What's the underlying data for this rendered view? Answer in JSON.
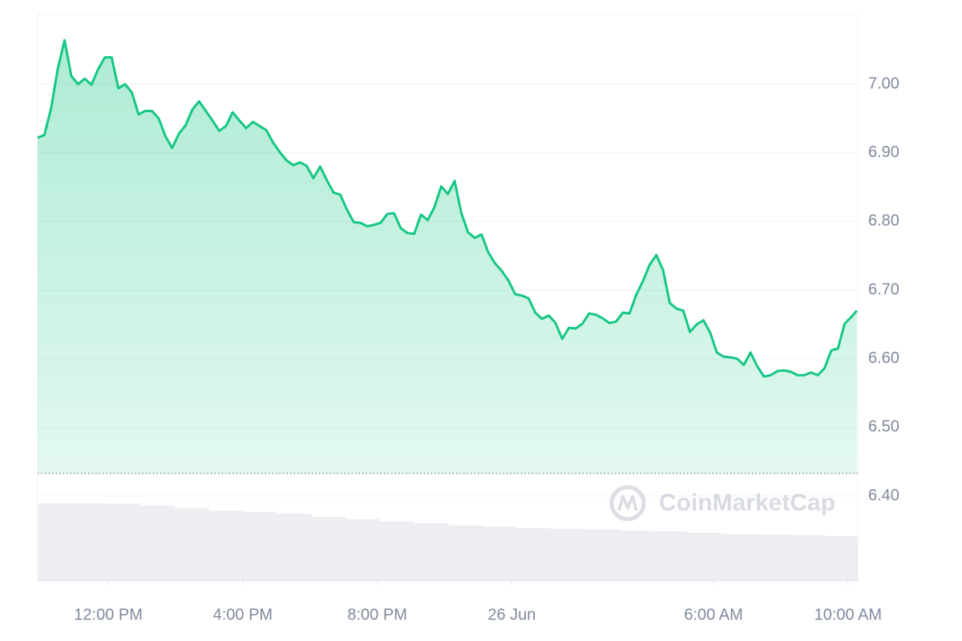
{
  "chart_data": {
    "type": "area",
    "watermark": "CoinMarketCap",
    "color": "#16c784",
    "x": [
      9.9,
      10.1,
      10.3,
      10.5,
      10.7,
      10.9,
      11.1,
      11.3,
      11.5,
      11.7,
      11.9,
      12.1,
      12.3,
      12.5,
      12.7,
      12.9,
      13.1,
      13.3,
      13.5,
      13.7,
      13.9,
      14.1,
      14.3,
      14.5,
      14.7,
      14.9,
      15.1,
      15.3,
      15.5,
      15.7,
      15.9,
      16.1,
      16.3,
      16.5,
      16.7,
      16.9,
      17.1,
      17.3,
      17.5,
      17.7,
      17.9,
      18.1,
      18.3,
      18.5,
      18.7,
      18.9,
      19.1,
      19.3,
      19.5,
      19.7,
      19.9,
      20.1,
      20.3,
      20.5,
      20.7,
      20.9,
      21.1,
      21.3,
      21.5,
      21.7,
      21.9,
      22.1,
      22.3,
      22.5,
      22.7,
      22.9,
      23.1,
      23.3,
      23.5,
      23.7,
      23.9,
      24.1,
      24.3,
      24.5,
      24.7,
      24.9,
      25.1,
      25.3,
      25.5,
      25.7,
      25.9,
      26.1,
      26.3,
      26.5,
      26.7,
      26.9,
      27.1,
      27.3,
      27.5,
      27.7,
      27.9,
      28.1,
      28.3,
      28.5,
      28.7,
      28.9,
      29.1,
      29.3,
      29.5,
      29.7,
      29.9,
      30.1,
      30.3,
      30.5,
      30.7,
      30.9,
      31.1,
      31.3,
      31.5,
      31.7,
      31.9,
      32.1,
      32.3,
      32.5,
      32.7,
      32.9,
      33.1,
      33.3,
      33.5,
      33.7,
      33.9,
      34.1,
      34.26
    ],
    "values": [
      6.922,
      6.926,
      6.965,
      7.023,
      7.064,
      7.012,
      7.0,
      7.008,
      6.999,
      7.022,
      7.039,
      7.039,
      6.994,
      7.0,
      6.988,
      6.956,
      6.961,
      6.961,
      6.95,
      6.924,
      6.907,
      6.928,
      6.94,
      6.963,
      6.975,
      6.961,
      6.947,
      6.932,
      6.939,
      6.959,
      6.947,
      6.936,
      6.945,
      6.939,
      6.933,
      6.915,
      6.901,
      6.889,
      6.882,
      6.886,
      6.881,
      6.863,
      6.88,
      6.86,
      6.842,
      6.839,
      6.817,
      6.799,
      6.798,
      6.793,
      6.795,
      6.798,
      6.811,
      6.812,
      6.79,
      6.783,
      6.782,
      6.81,
      6.802,
      6.821,
      6.851,
      6.84,
      6.859,
      6.812,
      6.784,
      6.776,
      6.781,
      6.755,
      6.739,
      6.728,
      6.714,
      6.694,
      6.692,
      6.688,
      6.667,
      6.658,
      6.663,
      6.652,
      6.629,
      6.645,
      6.644,
      6.651,
      6.666,
      6.664,
      6.659,
      6.652,
      6.654,
      6.667,
      6.666,
      6.693,
      6.713,
      6.737,
      6.751,
      6.729,
      6.681,
      6.673,
      6.67,
      6.639,
      6.65,
      6.656,
      6.638,
      6.609,
      6.603,
      6.602,
      6.6,
      6.591,
      6.609,
      6.589,
      6.574,
      6.576,
      6.582,
      6.583,
      6.581,
      6.576,
      6.576,
      6.58,
      6.576,
      6.586,
      6.612,
      6.615,
      6.651,
      6.661,
      6.67
    ],
    "reference_line": 6.433,
    "volume": {
      "color": "#eceef2",
      "axis": "y2",
      "values": [
        13.7,
        13.7,
        13.6,
        13.3,
        12.9,
        12.4,
        12.2,
        11.9,
        11.3,
        10.9,
        10.5,
        10.2,
        9.8,
        9.6,
        9.3,
        9.2,
        9.1,
        8.9,
        8.8,
        8.5,
        8.3,
        8.2,
        8.1,
        7.9
      ]
    },
    "xlim": [
      9.9,
      34.29
    ],
    "xticks": [
      {
        "value": 12,
        "label": "12:00 PM"
      },
      {
        "value": 16,
        "label": "4:00 PM"
      },
      {
        "value": 20,
        "label": "8:00 PM"
      },
      {
        "value": 24,
        "label": "26 Jun"
      },
      {
        "value": 30,
        "label": "6:00 AM"
      },
      {
        "value": 34,
        "label": "10:00 AM"
      }
    ],
    "ylim": [
      6.2763,
      7.1016
    ],
    "yticks": [
      {
        "value": 6.4,
        "label": "6.40"
      },
      {
        "value": 6.5,
        "label": "6.50"
      },
      {
        "value": 6.6,
        "label": "6.60"
      },
      {
        "value": 6.7,
        "label": "6.70"
      },
      {
        "value": 6.8,
        "label": "6.80"
      },
      {
        "value": 6.9,
        "label": "6.90"
      },
      {
        "value": 7.0,
        "label": "7.00"
      }
    ],
    "y2lim": [
      0,
      100
    ],
    "grid": true
  }
}
